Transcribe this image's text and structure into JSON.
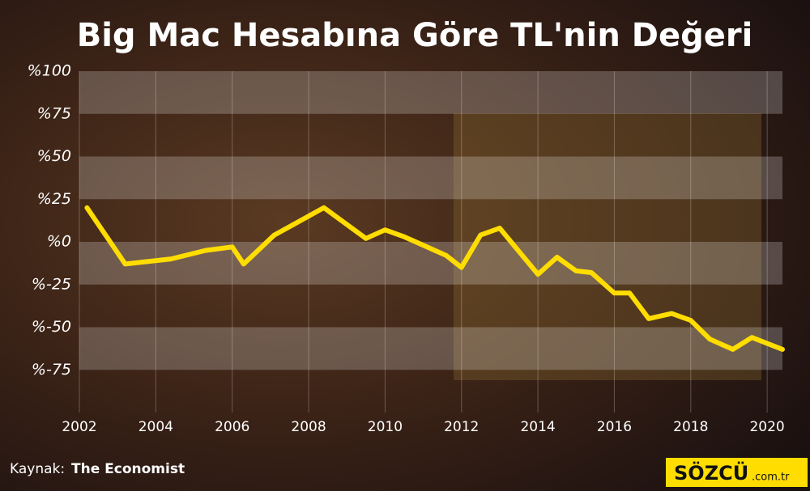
{
  "chart_data": {
    "type": "line",
    "title": "Big Mac Hesabına Göre TL'nin Değeri",
    "x": [
      2002.2,
      2003.2,
      2004.4,
      2005.3,
      2006.0,
      2006.3,
      2007.1,
      2008.4,
      2009.5,
      2010.0,
      2010.5,
      2011.6,
      2012.0,
      2012.5,
      2013.0,
      2014.0,
      2014.5,
      2015.0,
      2015.4,
      2016.0,
      2016.4,
      2016.9,
      2017.5,
      2018.0,
      2018.5,
      2019.1,
      2019.6,
      2020.4
    ],
    "series": [
      {
        "name": "TL",
        "color": "#ffdd00",
        "values": [
          20,
          -13,
          -10,
          -5,
          -3,
          -13,
          4,
          20,
          2,
          7,
          3,
          -8,
          -15,
          4,
          8,
          -19,
          -9,
          -17,
          -18,
          -30,
          -30,
          -45,
          -42,
          -46,
          -57,
          -63,
          -56,
          -63
        ]
      }
    ],
    "xlim": [
      2002,
      2020.4
    ],
    "xticks": [
      2002,
      2004,
      2006,
      2008,
      2010,
      2012,
      2014,
      2016,
      2018,
      2020
    ],
    "ylim": [
      -100,
      100
    ],
    "yticks": [
      {
        "value": 100,
        "label": "%100"
      },
      {
        "value": 75,
        "label": "%75"
      },
      {
        "value": 50,
        "label": "%50"
      },
      {
        "value": 25,
        "label": "%25"
      },
      {
        "value": 0,
        "label": "%0"
      },
      {
        "value": -25,
        "label": "%-25"
      },
      {
        "value": -50,
        "label": "%-50"
      },
      {
        "value": -75,
        "label": "%-75"
      }
    ],
    "grid": true,
    "source_label": "Kaynak:",
    "source": "The Economist",
    "logo": "SÖZCÜ",
    "logo_suffix": ".com.tr"
  }
}
